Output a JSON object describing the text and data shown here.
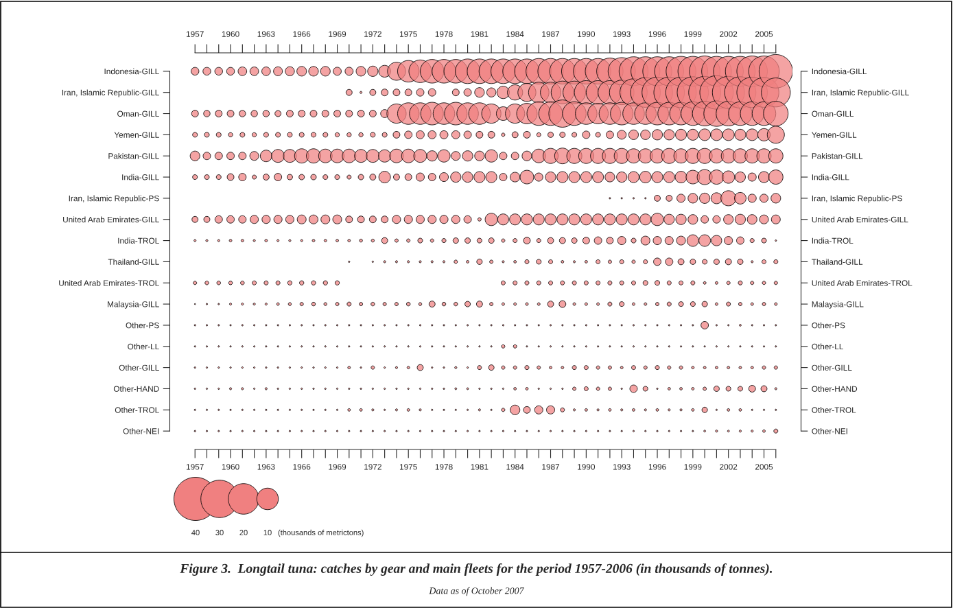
{
  "chart_data": {
    "type": "bubble",
    "orientation": "horizontal",
    "title": "Figure 3.  Longtail tuna: catches by gear and main fleets for the period 1957-2006 (in thousands of tonnes).",
    "annotations": [
      "Data as of October 2007"
    ],
    "legend_title": "(thousands of metrictons)",
    "size_legend": [
      40,
      30,
      20,
      10
    ],
    "categories": [
      "Indonesia-GILL",
      "Iran, Islamic Republic-GILL",
      "Oman-GILL",
      "Yemen-GILL",
      "Pakistan-GILL",
      "India-GILL",
      "Iran, Islamic Republic-PS",
      "United Arab Emirates-GILL",
      "India-TROL",
      "Thailand-GILL",
      "United Arab Emirates-TROL",
      "Malaysia-GILL",
      "Other-PS",
      "Other-LL",
      "Other-GILL",
      "Other-HAND",
      "Other-TROL",
      "Other-NEI"
    ],
    "xlim": [
      1957,
      2006
    ],
    "x2lim": [
      1957,
      2006
    ],
    "xticks": [
      1957,
      {
        "value": 1958,
        "label": null
      },
      {
        "value": 1959,
        "label": null
      },
      1960,
      {
        "value": 1961,
        "label": null
      },
      {
        "value": 1962,
        "label": null
      },
      1963,
      {
        "value": 1964,
        "label": null
      },
      {
        "value": 1965,
        "label": null
      },
      1966,
      {
        "value": 1967,
        "label": null
      },
      {
        "value": 1968,
        "label": null
      },
      1969,
      {
        "value": 1970,
        "label": null
      },
      {
        "value": 1971,
        "label": null
      },
      1972,
      {
        "value": 1973,
        "label": null
      },
      {
        "value": 1974,
        "label": null
      },
      1975,
      {
        "value": 1976,
        "label": null
      },
      {
        "value": 1977,
        "label": null
      },
      1978,
      {
        "value": 1979,
        "label": null
      },
      {
        "value": 1980,
        "label": null
      },
      1981,
      {
        "value": 1982,
        "label": null
      },
      {
        "value": 1983,
        "label": null
      },
      1984,
      {
        "value": 1985,
        "label": null
      },
      {
        "value": 1986,
        "label": null
      },
      1987,
      {
        "value": 1988,
        "label": null
      },
      {
        "value": 1989,
        "label": null
      },
      1990,
      {
        "value": 1991,
        "label": null
      },
      {
        "value": 1992,
        "label": null
      },
      1993,
      {
        "value": 1994,
        "label": null
      },
      {
        "value": 1995,
        "label": null
      },
      1996,
      {
        "value": 1997,
        "label": null
      },
      {
        "value": 1998,
        "label": null
      },
      1999,
      {
        "value": 2000,
        "label": null
      },
      {
        "value": 2001,
        "label": null
      },
      2002,
      {
        "value": 2003,
        "label": null
      },
      {
        "value": 2004,
        "label": null
      },
      2005,
      {
        "value": 2006,
        "label": null
      }
    ],
    "x2ticks": [
      1957,
      {
        "value": 1958,
        "label": null
      },
      {
        "value": 1959,
        "label": null
      },
      1960,
      {
        "value": 1961,
        "label": null
      },
      {
        "value": 1962,
        "label": null
      },
      1963,
      {
        "value": 1964,
        "label": null
      },
      {
        "value": 1965,
        "label": null
      },
      1966,
      {
        "value": 1967,
        "label": null
      },
      {
        "value": 1968,
        "label": null
      },
      1969,
      {
        "value": 1970,
        "label": null
      },
      {
        "value": 1971,
        "label": null
      },
      1972,
      {
        "value": 1973,
        "label": null
      },
      {
        "value": 1974,
        "label": null
      },
      1975,
      {
        "value": 1976,
        "label": null
      },
      {
        "value": 1977,
        "label": null
      },
      1978,
      {
        "value": 1979,
        "label": null
      },
      {
        "value": 1980,
        "label": null
      },
      1981,
      {
        "value": 1982,
        "label": null
      },
      {
        "value": 1983,
        "label": null
      },
      1984,
      {
        "value": 1985,
        "label": null
      },
      {
        "value": 1986,
        "label": null
      },
      1987,
      {
        "value": 1988,
        "label": null
      },
      {
        "value": 1989,
        "label": null
      },
      1990,
      {
        "value": 1991,
        "label": null
      },
      {
        "value": 1992,
        "label": null
      },
      1993,
      {
        "value": 1994,
        "label": null
      },
      {
        "value": 1995,
        "label": null
      },
      1996,
      {
        "value": 1997,
        "label": null
      },
      {
        "value": 1998,
        "label": null
      },
      1999,
      {
        "value": 2000,
        "label": null
      },
      {
        "value": 2001,
        "label": null
      },
      2002,
      {
        "value": 2003,
        "label": null
      },
      {
        "value": 2004,
        "label": null
      },
      2005,
      {
        "value": 2006,
        "label": null
      }
    ],
    "grid": false,
    "series": [
      {
        "color": "#f08080",
        "values": [
          1957,
          null,
          1957,
          1957,
          1957,
          1957,
          null,
          1957,
          1957,
          null,
          1957,
          1957,
          1957,
          1957,
          1957,
          1957,
          1957,
          1957
        ],
        "sizes": [
          1.3,
          null,
          1.0,
          0.5,
          2.0,
          0.5,
          null,
          0.8,
          0.1,
          null,
          0.25,
          0.03,
          0.05,
          0.05,
          0.05,
          0.05,
          0.05,
          0.05
        ]
      },
      {
        "color": "#f08080",
        "values": [
          1958,
          null,
          1958,
          1958,
          1958,
          1958,
          null,
          1958,
          1958,
          null,
          1958,
          1958,
          1958,
          1958,
          1958,
          1958,
          1958,
          1958
        ],
        "sizes": [
          1.3,
          null,
          0.9,
          0.5,
          1.2,
          0.5,
          null,
          0.8,
          0.1,
          null,
          0.3,
          0.05,
          0.05,
          0.05,
          0.05,
          0.05,
          0.05,
          0.05
        ]
      },
      {
        "color": "#f08080",
        "values": [
          1959,
          null,
          1959,
          1959,
          1959,
          1959,
          null,
          1959,
          1959,
          null,
          1959,
          1959,
          1959,
          1959,
          1959,
          1959,
          1959,
          1959
        ],
        "sizes": [
          1.3,
          null,
          1.0,
          0.5,
          1.2,
          0.5,
          null,
          1.2,
          0.1,
          null,
          0.3,
          0.05,
          0.05,
          0.05,
          0.05,
          0.05,
          0.05,
          0.05
        ]
      },
      {
        "color": "#f08080",
        "values": [
          1960,
          null,
          1960,
          1960,
          1960,
          1960,
          null,
          1960,
          1960,
          null,
          1960,
          1960,
          1960,
          1960,
          1960,
          1960,
          1960,
          1960
        ],
        "sizes": [
          1.3,
          null,
          1.0,
          0.4,
          1.2,
          1.0,
          null,
          1.2,
          0.15,
          null,
          0.3,
          0.1,
          0.05,
          0.05,
          0.05,
          0.1,
          0.05,
          0.05
        ]
      },
      {
        "color": "#f08080",
        "values": [
          1961,
          null,
          1961,
          1961,
          1961,
          1961,
          null,
          1961,
          1961,
          null,
          1961,
          1961,
          1961,
          1961,
          1961,
          1961,
          1961,
          1961
        ],
        "sizes": [
          1.6,
          null,
          0.9,
          0.5,
          1.2,
          1.2,
          null,
          1.2,
          0.15,
          null,
          0.3,
          0.1,
          0.05,
          0.05,
          0.05,
          0.1,
          0.05,
          0.05
        ]
      },
      {
        "color": "#f08080",
        "values": [
          1962,
          null,
          1962,
          1962,
          1962,
          1962,
          null,
          1962,
          1962,
          null,
          1962,
          1962,
          1962,
          1962,
          1962,
          1962,
          1962,
          1962
        ],
        "sizes": [
          1.6,
          null,
          0.9,
          0.4,
          1.7,
          0.36,
          null,
          1.45,
          0.1,
          null,
          0.36,
          0.1,
          0.05,
          0.05,
          0.05,
          0.05,
          0.05,
          0.05
        ]
      },
      {
        "color": "#f08080",
        "values": [
          1963,
          null,
          1963,
          1963,
          1963,
          1963,
          null,
          1963,
          1963,
          null,
          1963,
          1963,
          1963,
          1963,
          1963,
          1963,
          1963,
          1963
        ],
        "sizes": [
          1.6,
          null,
          0.9,
          0.5,
          2.9,
          0.8,
          null,
          1.45,
          0.15,
          null,
          0.36,
          0.1,
          0.05,
          0.05,
          0.05,
          0.1,
          0.05,
          0.05
        ]
      },
      {
        "color": "#f08080",
        "values": [
          1964,
          null,
          1964,
          1964,
          1964,
          1964,
          null,
          1964,
          1964,
          null,
          1964,
          1964,
          1964,
          1964,
          1964,
          1964,
          1964,
          1964
        ],
        "sizes": [
          1.7,
          null,
          0.8,
          0.5,
          3.6,
          1.2,
          null,
          1.45,
          0.1,
          null,
          0.36,
          0.15,
          0.05,
          0.05,
          0.05,
          0.05,
          0.05,
          0.05
        ]
      },
      {
        "color": "#f08080",
        "values": [
          1965,
          null,
          1965,
          1965,
          1965,
          1965,
          null,
          1965,
          1965,
          null,
          1965,
          1965,
          1965,
          1965,
          1965,
          1965,
          1965,
          1965
        ],
        "sizes": [
          1.8,
          null,
          1.0,
          0.5,
          3.6,
          0.65,
          null,
          1.45,
          0.1,
          null,
          0.4,
          0.2,
          0.05,
          0.05,
          0.05,
          0.05,
          0.05,
          0.05
        ]
      },
      {
        "color": "#f08080",
        "values": [
          1966,
          null,
          1966,
          1966,
          1966,
          1966,
          null,
          1966,
          1966,
          null,
          1966,
          1966,
          1966,
          1966,
          1966,
          1966,
          1966,
          1966
        ],
        "sizes": [
          2.0,
          null,
          1.0,
          0.5,
          4.4,
          0.65,
          null,
          1.7,
          0.1,
          null,
          0.4,
          0.25,
          0.05,
          0.05,
          0.05,
          0.05,
          0.05,
          0.05
        ]
      },
      {
        "color": "#f08080",
        "values": [
          1967,
          null,
          1967,
          1967,
          1967,
          1967,
          null,
          1967,
          1967,
          null,
          1967,
          1967,
          1967,
          1967,
          1967,
          1967,
          1967,
          1967
        ],
        "sizes": [
          2.0,
          null,
          1.0,
          0.5,
          4.4,
          0.65,
          null,
          1.7,
          0.15,
          null,
          0.4,
          0.3,
          0.05,
          0.05,
          0.05,
          0.05,
          0.05,
          0.05
        ]
      },
      {
        "color": "#f08080",
        "values": [
          1968,
          null,
          1968,
          1968,
          1968,
          1968,
          null,
          1968,
          1968,
          null,
          1968,
          1968,
          1968,
          1968,
          1968,
          1968,
          1968,
          1968
        ],
        "sizes": [
          2.0,
          null,
          1.0,
          0.5,
          4.0,
          0.5,
          null,
          1.7,
          0.15,
          null,
          0.4,
          0.2,
          0.05,
          0.05,
          0.05,
          0.05,
          0.05,
          0.05
        ]
      },
      {
        "color": "#f08080",
        "values": [
          1969,
          null,
          1969,
          1969,
          1969,
          1969,
          null,
          1969,
          1969,
          null,
          1969,
          1969,
          1969,
          1969,
          1969,
          1969,
          1969,
          1969
        ],
        "sizes": [
          1.4,
          null,
          1.0,
          0.4,
          4.0,
          0.5,
          null,
          1.7,
          0.15,
          null,
          0.4,
          0.25,
          0.05,
          0.05,
          0.05,
          0.05,
          0.05,
          0.05
        ]
      },
      {
        "color": "#f08080",
        "values": [
          1970,
          1970,
          1970,
          1970,
          1970,
          1970,
          null,
          1970,
          1970,
          1970,
          null,
          1970,
          1970,
          1970,
          1970,
          1970,
          1970,
          1970
        ],
        "sizes": [
          1.4,
          0.8,
          1.0,
          0.4,
          4.0,
          0.36,
          null,
          1.0,
          0.15,
          0.05,
          null,
          0.36,
          0.05,
          0.05,
          0.15,
          0.05,
          0.15,
          0.05
        ]
      },
      {
        "color": "#f08080",
        "values": [
          1971,
          1971,
          1971,
          1971,
          1971,
          1971,
          null,
          1971,
          1971,
          null,
          null,
          1971,
          1971,
          1971,
          1971,
          1971,
          1971,
          1971
        ],
        "sizes": [
          2.0,
          0.1,
          1.0,
          0.4,
          3.6,
          0.65,
          null,
          1.0,
          0.2,
          null,
          null,
          0.25,
          0.05,
          0.05,
          0.05,
          0.05,
          0.15,
          0.05
        ]
      },
      {
        "color": "#f08080",
        "values": [
          1972,
          1972,
          1972,
          1972,
          1972,
          1972,
          null,
          1972,
          1972,
          1972,
          null,
          1972,
          1972,
          1972,
          1972,
          1972,
          1972,
          1972
        ],
        "sizes": [
          2.3,
          0.8,
          1.0,
          0.5,
          3.6,
          0.8,
          null,
          1.0,
          0.2,
          0.05,
          null,
          0.3,
          0.05,
          0.05,
          0.25,
          0.05,
          0.1,
          0.05
        ]
      },
      {
        "color": "#f08080",
        "values": [
          1973,
          1973,
          1973,
          1973,
          1973,
          1973,
          null,
          1973,
          1973,
          1973,
          null,
          1973,
          1973,
          1973,
          1973,
          1973,
          1973,
          1973
        ],
        "sizes": [
          3.0,
          1.0,
          1.4,
          0.5,
          3.3,
          2.9,
          null,
          1.0,
          0.8,
          0.1,
          null,
          0.25,
          0.05,
          0.05,
          0.05,
          0.05,
          0.05,
          0.05
        ]
      },
      {
        "color": "#f08080",
        "values": [
          1974,
          1974,
          1974,
          1974,
          1974,
          1974,
          null,
          1974,
          1974,
          1974,
          null,
          1974,
          1974,
          1974,
          1974,
          1974,
          1974,
          1974
        ],
        "sizes": [
          7,
          1.0,
          8,
          1.0,
          4.0,
          0.8,
          null,
          1.45,
          0.25,
          0.1,
          null,
          0.25,
          0.05,
          0.05,
          0.1,
          0.05,
          0.1,
          0.05
        ]
      },
      {
        "color": "#f08080",
        "values": [
          1975,
          1975,
          1975,
          1975,
          1975,
          1975,
          null,
          1975,
          1975,
          1975,
          null,
          1975,
          1975,
          1975,
          1975,
          1975,
          1975,
          1975
        ],
        "sizes": [
          10,
          1.0,
          10,
          1.2,
          4.0,
          1.0,
          null,
          1.45,
          0.25,
          0.1,
          null,
          0.3,
          0.05,
          0.05,
          0.15,
          0.05,
          0.15,
          0.05
        ]
      },
      {
        "color": "#f08080",
        "values": [
          1976,
          1976,
          1976,
          1976,
          1976,
          1976,
          null,
          1976,
          1976,
          1976,
          null,
          1976,
          1976,
          1976,
          1976,
          1976,
          1976,
          1976
        ],
        "sizes": [
          11,
          1.2,
          10,
          1.4,
          3.6,
          1.45,
          null,
          1.45,
          0.5,
          0.1,
          null,
          0.2,
          0.05,
          0.05,
          0.8,
          0.05,
          0.1,
          0.05
        ]
      },
      {
        "color": "#f08080",
        "values": [
          1977,
          1977,
          1977,
          1977,
          1977,
          1977,
          null,
          1977,
          1977,
          1977,
          null,
          1977,
          1977,
          1977,
          1977,
          1977,
          1977,
          1977
        ],
        "sizes": [
          12,
          1.2,
          11,
          1.4,
          2.3,
          1.2,
          null,
          1.45,
          0.25,
          0.1,
          null,
          0.8,
          0.05,
          0.05,
          0.05,
          0.05,
          0.05,
          0.05
        ]
      },
      {
        "color": "#f08080",
        "values": [
          1978,
          null,
          1978,
          1978,
          1978,
          1978,
          null,
          1978,
          1978,
          1978,
          null,
          1978,
          1978,
          1978,
          1978,
          1978,
          1978,
          1978
        ],
        "sizes": [
          12,
          null,
          10,
          1.4,
          3.3,
          1.7,
          null,
          1.45,
          0.36,
          0.1,
          null,
          0.3,
          0.05,
          0.05,
          0.05,
          0.05,
          0.05,
          0.05
        ]
      },
      {
        "color": "#f08080",
        "values": [
          1979,
          1979,
          1979,
          1979,
          1979,
          1979,
          null,
          1979,
          1979,
          1979,
          null,
          1979,
          1979,
          1979,
          1979,
          1979,
          1979,
          1979
        ],
        "sizes": [
          12,
          1.0,
          11,
          1.4,
          1.7,
          2.3,
          null,
          1.45,
          0.65,
          0.25,
          null,
          0.3,
          0.05,
          0.05,
          0.1,
          0.08,
          0.05,
          0.05
        ]
      },
      {
        "color": "#f08080",
        "values": [
          1980,
          1980,
          1980,
          1980,
          1980,
          1980,
          null,
          1980,
          1980,
          1980,
          null,
          1980,
          1980,
          1980,
          1980,
          1980,
          1980,
          1980
        ],
        "sizes": [
          13,
          1.2,
          10,
          1.2,
          2.3,
          2.3,
          null,
          1.2,
          0.65,
          0.15,
          null,
          0.65,
          0.05,
          0.05,
          0.05,
          0.08,
          0.05,
          0.05
        ]
      },
      {
        "color": "#f08080",
        "values": [
          1981,
          1981,
          1981,
          1981,
          1981,
          1981,
          null,
          1981,
          1981,
          1981,
          null,
          1981,
          1981,
          1981,
          1981,
          1981,
          1981,
          1981
        ],
        "sizes": [
          13,
          2.0,
          10,
          1.0,
          2.0,
          2.6,
          null,
          0.25,
          0.5,
          0.65,
          null,
          0.8,
          0.05,
          0.05,
          0.36,
          0.05,
          0.1,
          0.05
        ]
      },
      {
        "color": "#f08080",
        "values": [
          1982,
          1982,
          1982,
          1982,
          1982,
          1982,
          null,
          1982,
          1982,
          1982,
          null,
          1982,
          1982,
          1982,
          1982,
          1982,
          1982,
          1982
        ],
        "sizes": [
          13,
          1.8,
          8,
          1.0,
          3.3,
          2.6,
          null,
          3.3,
          0.65,
          0.25,
          null,
          0.25,
          0.05,
          0.05,
          0.65,
          0.05,
          0.05,
          0.05
        ]
      },
      {
        "color": "#f08080",
        "values": [
          1983,
          1983,
          1983,
          1983,
          1983,
          1983,
          null,
          1983,
          1983,
          1983,
          1983,
          1983,
          1983,
          1983,
          1983,
          1983,
          1983,
          1983
        ],
        "sizes": [
          13,
          3.3,
          4,
          0.25,
          1.2,
          1.2,
          null,
          2.6,
          0.25,
          0.1,
          0.36,
          0.16,
          0.05,
          0.25,
          0.25,
          0.05,
          0.25,
          0.05
        ]
      },
      {
        "color": "#f08080",
        "values": [
          1984,
          1984,
          1984,
          1984,
          1984,
          1984,
          null,
          1984,
          1984,
          1984,
          1984,
          1984,
          1984,
          1984,
          1984,
          1984,
          1984,
          1984
        ],
        "sizes": [
          13,
          5,
          8,
          0.8,
          1.2,
          2.0,
          null,
          2.6,
          0.36,
          0.15,
          0.36,
          0.16,
          0.05,
          0.25,
          0.25,
          0.15,
          2.0,
          0.05
        ]
      },
      {
        "color": "#f08080",
        "values": [
          1985,
          1985,
          1985,
          1985,
          1985,
          1985,
          null,
          1985,
          1985,
          1985,
          1985,
          1985,
          1985,
          1985,
          1985,
          1985,
          1985,
          1985
        ],
        "sizes": [
          13,
          7,
          9,
          1.0,
          2.0,
          4.0,
          null,
          2.6,
          1.0,
          0.36,
          0.36,
          0.16,
          0.05,
          0.05,
          0.36,
          0.15,
          1.0,
          0.05
        ]
      },
      {
        "color": "#f08080",
        "values": [
          1986,
          1986,
          1986,
          1986,
          1986,
          1986,
          null,
          1986,
          1986,
          1986,
          1986,
          1986,
          1986,
          1986,
          1986,
          1986,
          1986,
          1986
        ],
        "sizes": [
          14,
          9,
          12,
          0.36,
          4.0,
          1.45,
          null,
          2.6,
          0.36,
          0.5,
          0.36,
          0.16,
          0.05,
          0.05,
          0.25,
          0.05,
          1.45,
          0.05
        ]
      },
      {
        "color": "#f08080",
        "values": [
          1987,
          1987,
          1987,
          1987,
          1987,
          1987,
          null,
          1987,
          1987,
          1987,
          1987,
          1987,
          1987,
          1987,
          1987,
          1987,
          1987,
          1987
        ],
        "sizes": [
          14,
          9,
          12,
          0.65,
          4.9,
          2.3,
          null,
          2.6,
          0.8,
          0.36,
          0.36,
          0.8,
          0.05,
          0.05,
          0.15,
          0.05,
          1.45,
          0.05
        ]
      },
      {
        "color": "#f08080",
        "values": [
          1988,
          1988,
          1988,
          1988,
          1988,
          1988,
          null,
          1988,
          1988,
          1988,
          1988,
          1988,
          1988,
          1988,
          1988,
          1988,
          1988,
          1988
        ],
        "sizes": [
          14,
          11,
          16,
          0.65,
          5.3,
          2.6,
          null,
          2.6,
          0.8,
          0.15,
          0.36,
          1.0,
          0.05,
          0.05,
          0.15,
          0.05,
          0.36,
          0.05
        ]
      },
      {
        "color": "#f08080",
        "values": [
          1989,
          1989,
          1989,
          1989,
          1989,
          1989,
          null,
          1989,
          1989,
          1989,
          1989,
          1989,
          1989,
          1989,
          1989,
          1989,
          1989,
          1989
        ],
        "sizes": [
          14,
          11,
          12,
          0.5,
          4.9,
          2.6,
          null,
          2.6,
          0.65,
          0.1,
          0.36,
          0.16,
          0.05,
          0.05,
          0.36,
          0.25,
          0.1,
          0.05
        ]
      },
      {
        "color": "#f08080",
        "values": [
          1990,
          1990,
          1990,
          1990,
          1990,
          1990,
          null,
          1990,
          1990,
          1990,
          1990,
          1990,
          1990,
          1990,
          1990,
          1990,
          1990,
          1990
        ],
        "sizes": [
          14,
          12,
          10,
          1.2,
          4.9,
          2.6,
          null,
          2.6,
          1.0,
          0.15,
          0.36,
          0.16,
          0.05,
          0.05,
          0.36,
          0.36,
          0.15,
          0.05
        ]
      },
      {
        "color": "#f08080",
        "values": [
          1991,
          1991,
          1991,
          1991,
          1991,
          1991,
          null,
          1991,
          1991,
          1991,
          1991,
          1991,
          1991,
          1991,
          1991,
          1991,
          1991,
          1991
        ],
        "sizes": [
          14,
          12,
          9,
          0.5,
          4.9,
          2.6,
          null,
          2.6,
          1.2,
          0.36,
          0.36,
          0.16,
          0.05,
          0.05,
          0.25,
          0.25,
          0.1,
          0.05
        ]
      },
      {
        "color": "#f08080",
        "values": [
          1992,
          1992,
          1992,
          1992,
          1992,
          1992,
          1992,
          1992,
          1992,
          1992,
          1992,
          1992,
          1992,
          1992,
          1992,
          1992,
          1992,
          1992
        ],
        "sizes": [
          15,
          12,
          10,
          1.2,
          4.9,
          2.0,
          0.05,
          2.6,
          1.0,
          0.25,
          0.36,
          0.36,
          0.05,
          0.05,
          0.25,
          0.25,
          0.15,
          0.05
        ]
      },
      {
        "color": "#f08080",
        "values": [
          1993,
          1993,
          1993,
          1993,
          1993,
          1993,
          1993,
          1993,
          1993,
          1993,
          1993,
          1993,
          1993,
          1993,
          1993,
          1993,
          1993,
          1993
        ],
        "sizes": [
          16,
          13,
          11,
          1.7,
          4.9,
          2.3,
          0.05,
          2.6,
          1.45,
          0.36,
          0.36,
          0.5,
          0.05,
          0.05,
          0.15,
          0.05,
          0.1,
          0.05
        ]
      },
      {
        "color": "#f08080",
        "values": [
          1994,
          1994,
          1994,
          1994,
          1994,
          1994,
          1994,
          1994,
          1994,
          1994,
          1994,
          1994,
          1994,
          1994,
          1994,
          1994,
          1994,
          1994
        ],
        "sizes": [
          18,
          16,
          10,
          2.0,
          4.4,
          2.6,
          0.05,
          2.6,
          0.5,
          0.25,
          0.36,
          0.16,
          0.05,
          0.05,
          0.36,
          1.2,
          0.15,
          0.05
        ]
      },
      {
        "color": "#f08080",
        "values": [
          1995,
          1995,
          1995,
          1995,
          1995,
          1995,
          1995,
          1995,
          1995,
          1995,
          1995,
          1995,
          1995,
          1995,
          1995,
          1995,
          1995,
          1995
        ],
        "sizes": [
          18,
          19,
          10,
          2.0,
          4.4,
          2.9,
          0.05,
          2.6,
          1.7,
          0.36,
          0.5,
          0.16,
          0.05,
          0.05,
          0.25,
          0.5,
          0.1,
          0.05
        ]
      },
      {
        "color": "#f08080",
        "values": [
          1996,
          1996,
          1996,
          1996,
          1996,
          1996,
          1996,
          1996,
          1996,
          1996,
          1996,
          1996,
          1996,
          1996,
          1996,
          1996,
          1996,
          1996
        ],
        "sizes": [
          18,
          20,
          11,
          2.3,
          4.4,
          2.6,
          0.8,
          3.3,
          1.45,
          1.2,
          0.5,
          0.25,
          0.05,
          0.05,
          0.36,
          0.05,
          0.15,
          0.05
        ]
      },
      {
        "color": "#f08080",
        "values": [
          1997,
          1997,
          1997,
          1997,
          1997,
          1997,
          1997,
          1997,
          1997,
          1997,
          1997,
          1997,
          1997,
          1997,
          1997,
          1997,
          1997,
          1997
        ],
        "sizes": [
          18,
          20,
          11,
          2.3,
          4.9,
          2.6,
          0.8,
          2.3,
          1.45,
          1.2,
          0.36,
          0.36,
          0.05,
          0.05,
          0.25,
          0.15,
          0.1,
          0.05
        ]
      },
      {
        "color": "#f08080",
        "values": [
          1998,
          1998,
          1998,
          1998,
          1998,
          1998,
          1998,
          1998,
          1998,
          1998,
          1998,
          1998,
          1998,
          1998,
          1998,
          1998,
          1998,
          1998
        ],
        "sizes": [
          19,
          20,
          11,
          2.6,
          4.4,
          2.9,
          1.45,
          2.3,
          1.7,
          0.8,
          0.36,
          0.5,
          0.05,
          0.05,
          0.25,
          0.15,
          0.1,
          0.05
        ]
      },
      {
        "color": "#f08080",
        "values": [
          1999,
          1999,
          1999,
          1999,
          1999,
          1999,
          1999,
          1999,
          1999,
          1999,
          1999,
          1999,
          1999,
          1999,
          1999,
          1999,
          1999,
          1999
        ],
        "sizes": [
          19,
          21,
          12,
          2.6,
          4.9,
          4.0,
          2.0,
          2.0,
          2.9,
          0.65,
          0.36,
          0.5,
          0.05,
          0.05,
          0.15,
          0.15,
          0.15,
          0.05
        ]
      },
      {
        "color": "#f08080",
        "values": [
          2000,
          2000,
          2000,
          2000,
          2000,
          2000,
          2000,
          2000,
          2000,
          2000,
          2000,
          2000,
          2000,
          2000,
          2000,
          2000,
          2000,
          2000
        ],
        "sizes": [
          20,
          22,
          13,
          2.9,
          4.9,
          4.9,
          2.3,
          1.2,
          2.9,
          0.5,
          0.16,
          0.65,
          1.2,
          0.05,
          0.15,
          0.25,
          0.65,
          0.08
        ]
      },
      {
        "color": "#f08080",
        "values": [
          2001,
          2001,
          2001,
          2001,
          2001,
          2001,
          2001,
          2001,
          2001,
          2001,
          2001,
          2001,
          2001,
          2001,
          2001,
          2001,
          2001,
          2001
        ],
        "sizes": [
          19,
          24,
          14,
          2.9,
          4.4,
          4.4,
          2.6,
          1.2,
          2.3,
          0.65,
          0.16,
          0.16,
          0.05,
          0.05,
          0.15,
          0.65,
          0.05,
          0.1
        ]
      },
      {
        "color": "#f08080",
        "values": [
          2002,
          2002,
          2002,
          2002,
          2002,
          2002,
          2002,
          2002,
          2002,
          2002,
          2002,
          2002,
          2002,
          2002,
          2002,
          2002,
          2002,
          2002
        ],
        "sizes": [
          19,
          22,
          13,
          2.9,
          4.4,
          3.3,
          4.9,
          2.0,
          1.45,
          0.8,
          0.25,
          0.36,
          0.05,
          0.05,
          0.15,
          0.5,
          0.15,
          0.08
        ]
      },
      {
        "color": "#f08080",
        "values": [
          2003,
          2003,
          2003,
          2003,
          2003,
          2003,
          2003,
          2003,
          2003,
          2003,
          2003,
          2003,
          2003,
          2003,
          2003,
          2003,
          2003,
          2003
        ],
        "sizes": [
          19,
          21,
          12,
          2.6,
          4.4,
          2.3,
          2.9,
          2.3,
          1.2,
          0.65,
          0.36,
          0.25,
          0.08,
          0.05,
          0.15,
          0.5,
          0.15,
          0.1
        ]
      },
      {
        "color": "#f08080",
        "values": [
          2004,
          2004,
          2004,
          2004,
          2004,
          2004,
          2004,
          2004,
          2004,
          2004,
          2004,
          2004,
          2004,
          2004,
          2004,
          2004,
          2004,
          2004
        ],
        "sizes": [
          20,
          20,
          12,
          2.9,
          4.4,
          1.45,
          1.45,
          2.0,
          0.36,
          0.1,
          0.25,
          0.16,
          0.05,
          0.05,
          0.15,
          1.0,
          0.05,
          0.1
        ]
      },
      {
        "color": "#f08080",
        "values": [
          2005,
          2005,
          2005,
          2005,
          2005,
          2005,
          2005,
          2005,
          2005,
          2005,
          2005,
          2005,
          2005,
          2005,
          2005,
          2005,
          2005,
          2005
        ],
        "sizes": [
          20,
          19,
          12,
          3.3,
          4.4,
          2.6,
          1.45,
          1.7,
          0.5,
          0.36,
          0.25,
          0.25,
          0.05,
          0.05,
          0.25,
          0.8,
          0.05,
          0.15
        ]
      },
      {
        "color": "#f08080",
        "values": [
          2006,
          2006,
          2006,
          2006,
          2006,
          2006,
          2006,
          2006,
          2006,
          2006,
          2006,
          2006,
          2006,
          2006,
          2006,
          2006,
          2006,
          2006
        ],
        "sizes": [
          24,
          18,
          13,
          6.3,
          4.4,
          4.4,
          2.0,
          1.7,
          0.05,
          0.36,
          0.25,
          0.16,
          0.05,
          0.05,
          0.25,
          0.1,
          0.05,
          0.36
        ]
      }
    ]
  }
}
